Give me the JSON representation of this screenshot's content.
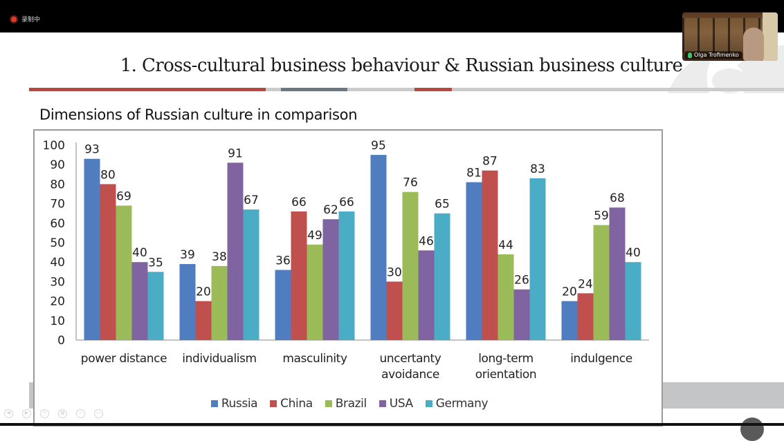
{
  "recording": {
    "label": "录制中",
    "icon": "record-dot-icon"
  },
  "video": {
    "participant_name": "Olga Trofimenko",
    "mic_icon": "microphone-icon"
  },
  "slide": {
    "title": "1. Cross-cultural business behaviour & Russian business culture",
    "subtitle": "Dimensions of Russian culture in comparison"
  },
  "colors": {
    "accent_red": "#b5493a",
    "accent_slate": "#6b7880",
    "rule_grey": "#c9cbcd",
    "Russia": "#4f7dc0",
    "China": "#c0504d",
    "Brazil": "#9bbb59",
    "USA": "#8064a2",
    "Germany": "#4bacc6"
  },
  "controls": [
    {
      "name": "prev-icon",
      "glyph": "◀"
    },
    {
      "name": "next-icon",
      "glyph": "▶"
    },
    {
      "name": "pen-icon",
      "glyph": "✎"
    },
    {
      "name": "slides-icon",
      "glyph": "▦"
    },
    {
      "name": "zoom-icon",
      "glyph": "⌕"
    },
    {
      "name": "more-icon",
      "glyph": "—"
    }
  ],
  "chart_data": {
    "type": "bar",
    "title": "Dimensions of Russian culture in comparison",
    "xlabel": "",
    "ylabel": "",
    "ylim": [
      0,
      100
    ],
    "yticks": [
      0,
      10,
      20,
      30,
      40,
      50,
      60,
      70,
      80,
      90,
      100
    ],
    "grid": false,
    "legend_position": "bottom",
    "categories": [
      [
        "power distance"
      ],
      [
        "individualism"
      ],
      [
        "masculinity"
      ],
      [
        "uncertanty",
        "avoidance"
      ],
      [
        "long-term",
        "orientation"
      ],
      [
        "indulgence"
      ]
    ],
    "series": [
      {
        "name": "Russia",
        "values": [
          93,
          39,
          36,
          95,
          81,
          20
        ]
      },
      {
        "name": "China",
        "values": [
          80,
          20,
          66,
          30,
          87,
          24
        ]
      },
      {
        "name": "Brazil",
        "values": [
          69,
          38,
          49,
          76,
          44,
          59
        ]
      },
      {
        "name": "USA",
        "values": [
          40,
          91,
          62,
          46,
          26,
          68
        ]
      },
      {
        "name": "Germany",
        "values": [
          35,
          67,
          66,
          65,
          83,
          40
        ]
      }
    ]
  }
}
